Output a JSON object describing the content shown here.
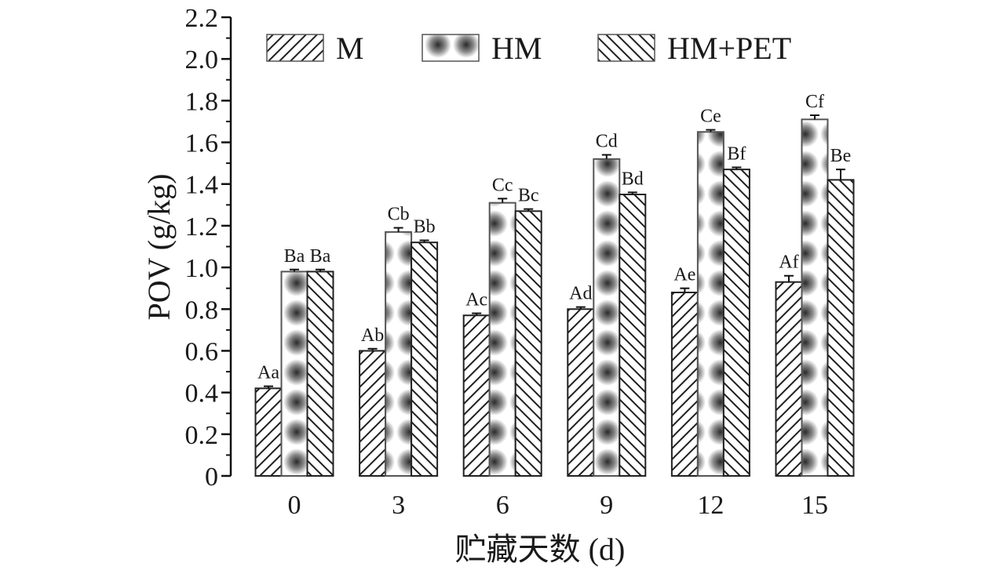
{
  "chart_data": {
    "type": "bar",
    "title": "",
    "xlabel": "贮藏天数 (d)",
    "ylabel": "POV (g/kg)",
    "ylim": [
      0,
      2.2
    ],
    "yticks": [
      "0",
      "0.2",
      "0.4",
      "0.6",
      "0.8",
      "1.0",
      "1.2",
      "1.4",
      "1.6",
      "1.8",
      "2.0",
      "2.2"
    ],
    "categories": [
      "0",
      "3",
      "6",
      "9",
      "12",
      "15"
    ],
    "legend_position": "top",
    "grid": false,
    "series": [
      {
        "name": "M",
        "pattern": "hatch-forward",
        "color": "#222222",
        "values": [
          0.42,
          0.6,
          0.77,
          0.8,
          0.88,
          0.93
        ],
        "errors": [
          0.01,
          0.01,
          0.01,
          0.01,
          0.02,
          0.03
        ],
        "labels": [
          "Aa",
          "Ab",
          "Ac",
          "Ad",
          "Ae",
          "Af"
        ]
      },
      {
        "name": "HM",
        "pattern": "dots",
        "color": "#555555",
        "values": [
          0.98,
          1.17,
          1.31,
          1.52,
          1.65,
          1.71
        ],
        "errors": [
          0.01,
          0.02,
          0.02,
          0.02,
          0.01,
          0.02
        ],
        "labels": [
          "Ba",
          "Cb",
          "Cc",
          "Cd",
          "Ce",
          "Cf"
        ]
      },
      {
        "name": "HM+PET",
        "pattern": "hatch-back",
        "color": "#222222",
        "values": [
          0.98,
          1.12,
          1.27,
          1.35,
          1.47,
          1.42
        ],
        "errors": [
          0.01,
          0.01,
          0.01,
          0.01,
          0.01,
          0.05
        ],
        "labels": [
          "Ba",
          "Bb",
          "Bc",
          "Bd",
          "Bf",
          "Be"
        ]
      }
    ]
  }
}
